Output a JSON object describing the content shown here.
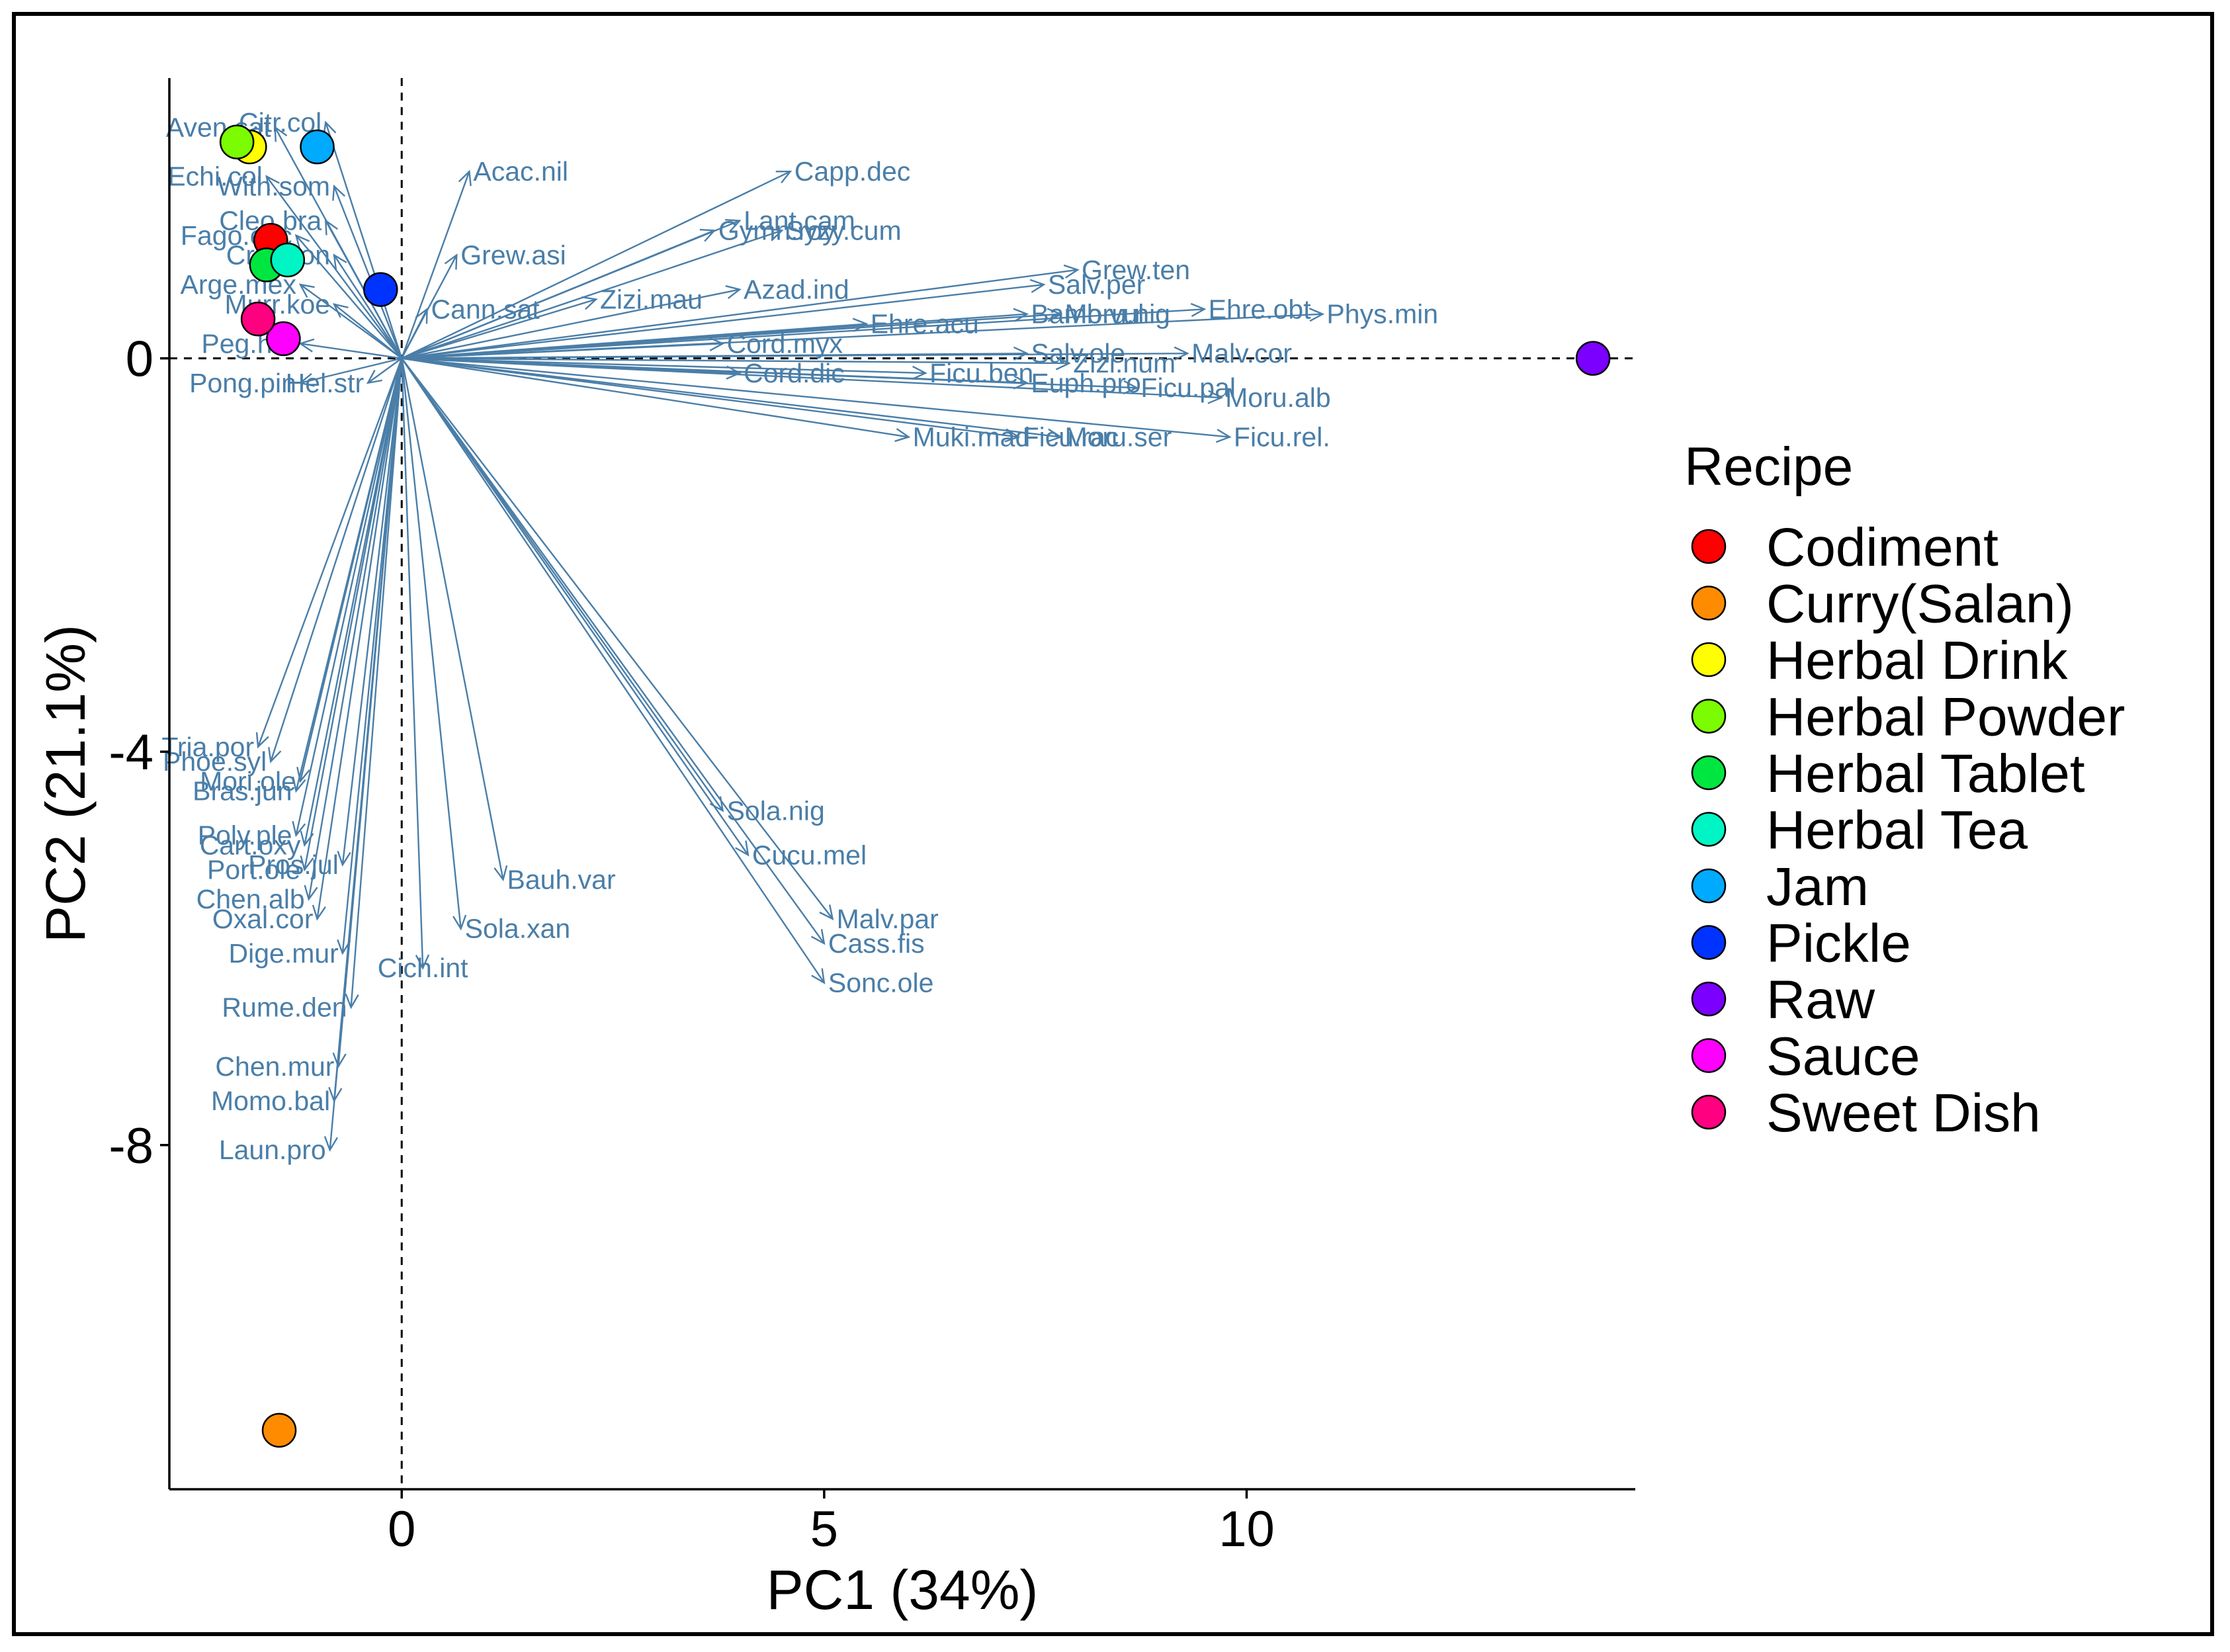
{
  "chart_data": {
    "type": "scatter",
    "xlabel": "PC1 (34%)",
    "ylabel": "PC2 (21.1%)",
    "xlim": [
      -2.75,
      14.6
    ],
    "ylim": [
      -11.5,
      2.85
    ],
    "xticks": [
      0,
      5,
      10
    ],
    "yticks": [
      0,
      -4,
      -8
    ],
    "reference_lines": {
      "x": 0,
      "y": 0,
      "style": "dashed"
    },
    "legend": {
      "title": "Recipe",
      "position": "right"
    },
    "arrow_color": "#4a7ea8",
    "points": [
      {
        "name": "Codiment",
        "x": -1.55,
        "y": 1.2,
        "color": "#ff0000"
      },
      {
        "name": "Curry(Salan)",
        "x": -1.45,
        "y": -10.9,
        "color": "#ff8c00"
      },
      {
        "name": "Herbal Drink",
        "x": -1.8,
        "y": 2.15,
        "color": "#ffff00"
      },
      {
        "name": "Herbal Powder",
        "x": -1.95,
        "y": 2.2,
        "color": "#7cfc00"
      },
      {
        "name": "Herbal Tablet",
        "x": -1.6,
        "y": 0.95,
        "color": "#00e640"
      },
      {
        "name": "Herbal Tea",
        "x": -1.35,
        "y": 1.0,
        "color": "#00f5c4"
      },
      {
        "name": "Jam",
        "x": -1.0,
        "y": 2.15,
        "color": "#00aaff"
      },
      {
        "name": "Pickle",
        "x": -0.25,
        "y": 0.7,
        "color": "#0033ff"
      },
      {
        "name": "Raw",
        "x": 14.1,
        "y": 0.0,
        "color": "#7b00ff"
      },
      {
        "name": "Sauce",
        "x": -1.4,
        "y": 0.2,
        "color": "#ff00ff"
      },
      {
        "name": "Sweet Dish",
        "x": -1.7,
        "y": 0.4,
        "color": "#ff0080"
      }
    ],
    "variables": [
      {
        "name": "Aven.sat",
        "x": -1.5,
        "y": 2.35
      },
      {
        "name": "Citr.col",
        "x": -0.9,
        "y": 2.4
      },
      {
        "name": "Echi.col",
        "x": -1.6,
        "y": 1.85
      },
      {
        "name": "With.som",
        "x": -0.8,
        "y": 1.75
      },
      {
        "name": "Acac.nil",
        "x": 0.8,
        "y": 1.9
      },
      {
        "name": "Cleo.bra",
        "x": -0.9,
        "y": 1.4
      },
      {
        "name": "Fago.esc",
        "x": -1.25,
        "y": 1.25
      },
      {
        "name": "Crot.bon",
        "x": -0.8,
        "y": 1.05
      },
      {
        "name": "Grew.asi",
        "x": 0.65,
        "y": 1.05
      },
      {
        "name": "Arge.mex",
        "x": -1.2,
        "y": 0.75
      },
      {
        "name": "Murr.koe",
        "x": -0.8,
        "y": 0.55
      },
      {
        "name": "Cann.sat",
        "x": 0.3,
        "y": 0.5
      },
      {
        "name": "Peg.har",
        "x": -1.2,
        "y": 0.15
      },
      {
        "name": "Pong.pin",
        "x": -1.2,
        "y": -0.25
      },
      {
        "name": "Hel.str",
        "x": -0.4,
        "y": -0.25
      },
      {
        "name": "Zizi.mau",
        "x": 2.3,
        "y": 0.6
      },
      {
        "name": "Lant.cam",
        "x": 4.0,
        "y": 1.4
      },
      {
        "name": "Gymn.roy",
        "x": 3.7,
        "y": 1.3
      },
      {
        "name": "Capp.dec",
        "x": 4.6,
        "y": 1.9
      },
      {
        "name": "Syzy.cum",
        "x": 4.5,
        "y": 1.3
      },
      {
        "name": "Azad.ind",
        "x": 4.0,
        "y": 0.7
      },
      {
        "name": "Cord.myx",
        "x": 3.8,
        "y": 0.15
      },
      {
        "name": "Ehre.acu",
        "x": 5.5,
        "y": 0.35
      },
      {
        "name": "Cord.dic",
        "x": 4.0,
        "y": -0.15
      },
      {
        "name": "Salv.per",
        "x": 7.6,
        "y": 0.75
      },
      {
        "name": "Grew.ten",
        "x": 8.0,
        "y": 0.9
      },
      {
        "name": "Bamb.vul",
        "x": 7.4,
        "y": 0.45
      },
      {
        "name": "Moru.nig",
        "x": 7.8,
        "y": 0.45
      },
      {
        "name": "Ehre.obt",
        "x": 9.5,
        "y": 0.5
      },
      {
        "name": "Phys.min",
        "x": 10.9,
        "y": 0.45
      },
      {
        "name": "Salv.ole",
        "x": 7.4,
        "y": 0.05
      },
      {
        "name": "Zizi.num",
        "x": 7.9,
        "y": -0.05
      },
      {
        "name": "Malv.cor",
        "x": 9.3,
        "y": 0.05
      },
      {
        "name": "Ficu.ben",
        "x": 6.2,
        "y": -0.15
      },
      {
        "name": "Euph.pro",
        "x": 7.4,
        "y": -0.25
      },
      {
        "name": "Ficu.pal",
        "x": 8.7,
        "y": -0.3
      },
      {
        "name": "Moru.alb",
        "x": 9.7,
        "y": -0.4
      },
      {
        "name": "Muki.mad",
        "x": 6.0,
        "y": -0.8
      },
      {
        "name": "Ficu.rac",
        "x": 7.3,
        "y": -0.8
      },
      {
        "name": "Moru.ser",
        "x": 7.8,
        "y": -0.8
      },
      {
        "name": "Ficu.rel.",
        "x": 9.8,
        "y": -0.8
      },
      {
        "name": "Tria.por",
        "x": -1.7,
        "y": -3.95
      },
      {
        "name": "Phoe.syl",
        "x": -1.55,
        "y": -4.1
      },
      {
        "name": "Mori.ole",
        "x": -1.2,
        "y": -4.3
      },
      {
        "name": "Bras.jun",
        "x": -1.25,
        "y": -4.4
      },
      {
        "name": "Sola.nig",
        "x": 3.8,
        "y": -4.6
      },
      {
        "name": "Poly.ple",
        "x": -1.25,
        "y": -4.85
      },
      {
        "name": "Cart.oxy",
        "x": -1.15,
        "y": -4.95
      },
      {
        "name": "Port.ole",
        "x": -1.15,
        "y": -5.2
      },
      {
        "name": "Pros.jul",
        "x": -0.7,
        "y": -5.15
      },
      {
        "name": "Cucu.mel",
        "x": 4.1,
        "y": -5.05
      },
      {
        "name": "Bauh.var",
        "x": 1.2,
        "y": -5.3
      },
      {
        "name": "Malv.par",
        "x": 5.1,
        "y": -5.7
      },
      {
        "name": "Chen.alb",
        "x": -1.1,
        "y": -5.5
      },
      {
        "name": "Oxal.cor",
        "x": -1.0,
        "y": -5.7
      },
      {
        "name": "Sola.xan",
        "x": 0.7,
        "y": -5.8
      },
      {
        "name": "Cass.fis",
        "x": 5.0,
        "y": -5.95
      },
      {
        "name": "Dige.mur",
        "x": -0.7,
        "y": -6.05
      },
      {
        "name": "Cich.int",
        "x": 0.25,
        "y": -6.2
      },
      {
        "name": "Sonc.ole",
        "x": 5.0,
        "y": -6.35
      },
      {
        "name": "Rume.den",
        "x": -0.6,
        "y": -6.6
      },
      {
        "name": "Chen.mur",
        "x": -0.75,
        "y": -7.2
      },
      {
        "name": "Momo.bal",
        "x": -0.8,
        "y": -7.55
      },
      {
        "name": "Laun.pro",
        "x": -0.85,
        "y": -8.05
      }
    ]
  }
}
